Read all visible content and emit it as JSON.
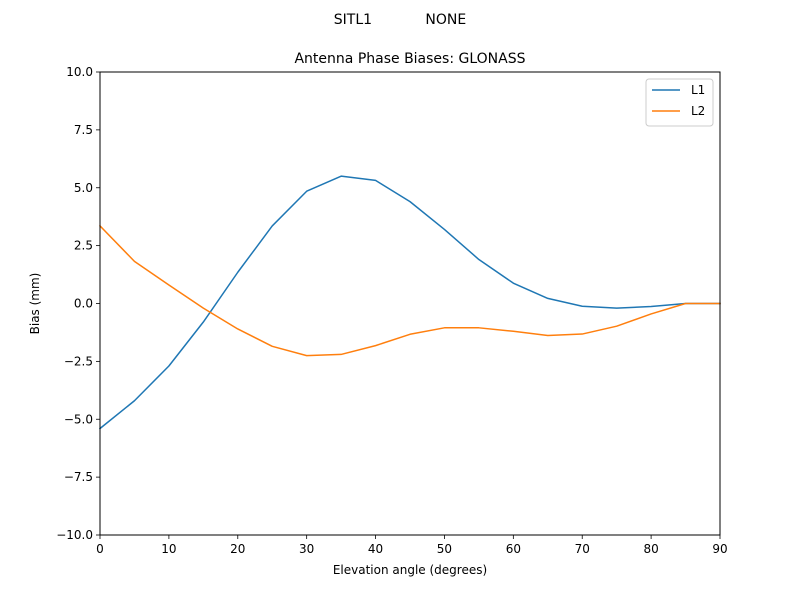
{
  "chart_data": {
    "type": "line",
    "suptitle": "SITL1            NONE",
    "title": "Antenna Phase Biases: GLONASS",
    "xlabel": "Elevation angle (degrees)",
    "ylabel": "Bias (mm)",
    "xlim": [
      0,
      90
    ],
    "ylim": [
      -10,
      10
    ],
    "xticks": [
      0,
      10,
      20,
      30,
      40,
      50,
      60,
      70,
      80,
      90
    ],
    "yticks": [
      -10.0,
      -7.5,
      -5.0,
      -2.5,
      0.0,
      2.5,
      5.0,
      7.5,
      10.0
    ],
    "ytick_labels": [
      "−10.0",
      "−7.5",
      "−5.0",
      "−2.5",
      "0.0",
      "2.5",
      "5.0",
      "7.5",
      "10.0"
    ],
    "grid": false,
    "legend": "top-right",
    "x": [
      0,
      5,
      10,
      15,
      20,
      25,
      30,
      35,
      40,
      45,
      50,
      55,
      60,
      65,
      70,
      75,
      80,
      85,
      90
    ],
    "series": [
      {
        "name": "L1",
        "color": "#1f77b4",
        "values": [
          -5.4,
          -4.2,
          -2.7,
          -0.8,
          1.35,
          3.35,
          4.85,
          5.5,
          5.32,
          4.4,
          3.2,
          1.9,
          0.88,
          0.22,
          -0.12,
          -0.2,
          -0.13,
          0.0,
          0.0
        ]
      },
      {
        "name": "L2",
        "color": "#ff7f0e",
        "values": [
          3.35,
          1.82,
          0.8,
          -0.2,
          -1.1,
          -1.85,
          -2.25,
          -2.2,
          -1.82,
          -1.33,
          -1.05,
          -1.05,
          -1.2,
          -1.38,
          -1.32,
          -0.98,
          -0.45,
          0.0,
          0.0
        ]
      }
    ]
  }
}
